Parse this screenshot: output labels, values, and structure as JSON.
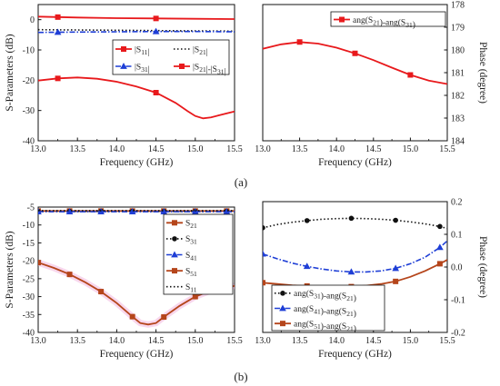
{
  "chart_data": [
    {
      "id": "a-left",
      "type": "line",
      "xlabel": "Frequency (GHz)",
      "ylabel": "S-Parameters (dB)",
      "xlim": [
        13.0,
        15.5
      ],
      "ylim": [
        -40,
        5
      ],
      "xticks": [
        "13.0",
        "13.5",
        "14.0",
        "14.5",
        "15.0",
        "15.5"
      ],
      "yticks": [
        "0",
        "-10",
        "-20",
        "-30",
        "-40"
      ],
      "legend_position": "center-right",
      "series": [
        {
          "name": "|S11|",
          "color": "#e8191c",
          "dash": "solid",
          "marker": "square",
          "x": [
            13.0,
            13.25,
            13.5,
            13.75,
            14.0,
            14.25,
            14.5,
            14.75,
            14.9,
            15.0,
            15.1,
            15.2,
            15.3,
            15.5
          ],
          "y": [
            -20.1,
            -19.4,
            -19.1,
            -19.5,
            -20.5,
            -22.1,
            -24.1,
            -27.5,
            -30.2,
            -31.8,
            -32.6,
            -32.3,
            -31.6,
            -30.3
          ],
          "markers_x": [
            13.25,
            14.5
          ]
        },
        {
          "name": "|S21|",
          "color": "#111111",
          "dash": "dot",
          "marker": "none",
          "x": [
            13.0,
            13.5,
            14.0,
            14.5,
            15.0,
            15.5
          ],
          "y": [
            -3.3,
            -3.4,
            -3.5,
            -3.6,
            -3.7,
            -3.8
          ]
        },
        {
          "name": "|S31|",
          "color": "#1f3fd6",
          "dash": "dashdot",
          "marker": "triangle",
          "x": [
            13.0,
            13.5,
            14.0,
            14.5,
            15.0,
            15.5
          ],
          "y": [
            -4.2,
            -4.1,
            -4.0,
            -3.9,
            -3.9,
            -4.0
          ],
          "markers_x": [
            13.25,
            14.5
          ]
        },
        {
          "name": "|S21|-|S31|",
          "color": "#e8191c",
          "dash": "solid",
          "marker": "square",
          "x": [
            13.0,
            13.5,
            14.0,
            14.5,
            15.0,
            15.5
          ],
          "y": [
            1.0,
            0.7,
            0.5,
            0.4,
            0.3,
            0.2
          ],
          "markers_x": [
            13.25,
            14.5
          ]
        }
      ]
    },
    {
      "id": "a-right",
      "type": "line",
      "xlabel": "Frequency (GHz)",
      "ylabel": "Phase (degree)",
      "xlim": [
        13.0,
        15.5
      ],
      "ylim": [
        184,
        178
      ],
      "xticks": [
        "13.0",
        "13.5",
        "14.0",
        "14.5",
        "15.0",
        "15.5"
      ],
      "yticks": [
        "178",
        "179",
        "180",
        "181",
        "182",
        "183",
        "184"
      ],
      "legend_position": "top-right",
      "series": [
        {
          "name": "ang(S21)-ang(S31)",
          "color": "#e8191c",
          "dash": "solid",
          "marker": "square",
          "x": [
            13.0,
            13.25,
            13.5,
            13.75,
            14.0,
            14.25,
            14.5,
            14.75,
            15.0,
            15.25,
            15.5
          ],
          "y": [
            179.95,
            179.75,
            179.65,
            179.72,
            179.9,
            180.15,
            180.45,
            180.78,
            181.1,
            181.35,
            181.5
          ],
          "markers_x": [
            13.5,
            14.25,
            15.0
          ]
        }
      ]
    },
    {
      "id": "b-left",
      "type": "line",
      "xlabel": "Frequency (GHz)",
      "ylabel": "S-Parameters (dB)",
      "xlim": [
        13.0,
        15.5
      ],
      "ylim": [
        -40,
        -5
      ],
      "xticks": [
        "13.0",
        "13.5",
        "14.0",
        "14.5",
        "15.0",
        "15.5"
      ],
      "yticks": [
        "-5",
        "-10",
        "-15",
        "-20",
        "-25",
        "-30",
        "-35",
        "-40"
      ],
      "legend_position": "top-right",
      "series": [
        {
          "name": "S21",
          "color": "#b5451b",
          "dash": "solid",
          "marker": "square",
          "x": [
            13.0,
            13.5,
            14.0,
            14.5,
            15.0,
            15.5
          ],
          "y": [
            -6.1,
            -6.1,
            -6.1,
            -6.1,
            -6.1,
            -6.1
          ],
          "markers_x": [
            13.0,
            13.4,
            13.8,
            14.2,
            14.6,
            15.0,
            15.4
          ]
        },
        {
          "name": "S31",
          "color": "#111111",
          "dash": "dot",
          "marker": "circle",
          "x": [
            13.0,
            13.5,
            14.0,
            14.5,
            15.0,
            15.5
          ],
          "y": [
            -6.2,
            -6.2,
            -6.2,
            -6.2,
            -6.2,
            -6.2
          ],
          "markers_x": [
            13.0,
            13.4,
            13.8,
            14.2,
            14.6,
            15.0,
            15.4
          ]
        },
        {
          "name": "S41",
          "color": "#1f3fd6",
          "dash": "dashdot",
          "marker": "triangle",
          "x": [
            13.0,
            13.5,
            14.0,
            14.5,
            15.0,
            15.5
          ],
          "y": [
            -6.3,
            -6.3,
            -6.3,
            -6.3,
            -6.3,
            -6.3
          ],
          "markers_x": [
            13.0,
            13.4,
            13.8,
            14.2,
            14.6,
            15.0,
            15.4
          ]
        },
        {
          "name": "S51",
          "color": "#b5451b",
          "dash": "solid",
          "marker": "square",
          "x": [
            13.0,
            13.2,
            13.4,
            13.6,
            13.8,
            14.0,
            14.2,
            14.3,
            14.4,
            14.5,
            14.6,
            14.8,
            15.0,
            15.2,
            15.4,
            15.5
          ],
          "y": [
            -20.5,
            -22.0,
            -23.8,
            -26.0,
            -28.6,
            -31.8,
            -35.6,
            -37.4,
            -37.8,
            -37.4,
            -35.7,
            -32.6,
            -30.0,
            -28.3,
            -27.6,
            -27.0
          ],
          "markers_x": [
            13.0,
            13.4,
            13.8,
            14.2,
            14.6,
            15.0,
            15.4
          ]
        },
        {
          "name": "S11",
          "color": "#111111",
          "dash": "dot",
          "marker": "none",
          "x": [
            13.0,
            13.5,
            14.0,
            14.5,
            15.0,
            15.5
          ],
          "y": [
            -6.0,
            -6.0,
            -6.0,
            -6.0,
            -6.0,
            -6.0
          ]
        }
      ]
    },
    {
      "id": "b-right",
      "type": "line",
      "xlabel": "Frequency (GHz)",
      "ylabel": "Phase (degree)",
      "xlim": [
        13.0,
        15.5
      ],
      "ylim": [
        -0.2,
        0.2
      ],
      "xticks": [
        "13.0",
        "13.5",
        "14.0",
        "14.5",
        "15.0",
        "15.5"
      ],
      "yticks": [
        "0.2",
        "0.1",
        "0.0",
        "-0.1",
        "-0.2"
      ],
      "legend_position": "bottom-left",
      "series": [
        {
          "name": "ang(S31)-ang(S21)",
          "color": "#111111",
          "dash": "dot",
          "marker": "circle",
          "x": [
            13.0,
            13.2,
            13.4,
            13.6,
            13.8,
            14.0,
            14.2,
            14.4,
            14.6,
            14.8,
            15.0,
            15.2,
            15.4,
            15.5
          ],
          "y": [
            0.12,
            0.13,
            0.137,
            0.142,
            0.146,
            0.148,
            0.149,
            0.148,
            0.146,
            0.143,
            0.138,
            0.132,
            0.124,
            0.118
          ],
          "markers_x": [
            13.0,
            13.6,
            14.2,
            14.8,
            15.4
          ]
        },
        {
          "name": "ang(S41)-ang(S21)",
          "color": "#1f3fd6",
          "dash": "dashdot",
          "marker": "triangle",
          "x": [
            13.0,
            13.2,
            13.4,
            13.6,
            13.8,
            14.0,
            14.2,
            14.4,
            14.6,
            14.8,
            15.0,
            15.2,
            15.4,
            15.5
          ],
          "y": [
            0.04,
            0.025,
            0.012,
            0.002,
            -0.006,
            -0.012,
            -0.015,
            -0.015,
            -0.012,
            -0.004,
            0.01,
            0.03,
            0.06,
            0.08
          ],
          "markers_x": [
            13.0,
            13.6,
            14.2,
            14.8,
            15.4
          ]
        },
        {
          "name": "ang(S51)-ang(S21)",
          "color": "#b5451b",
          "dash": "solid",
          "marker": "square",
          "x": [
            13.0,
            13.2,
            13.4,
            13.6,
            13.8,
            14.0,
            14.2,
            14.4,
            14.6,
            14.8,
            15.0,
            15.2,
            15.4,
            15.5
          ],
          "y": [
            -0.048,
            -0.052,
            -0.056,
            -0.058,
            -0.06,
            -0.061,
            -0.06,
            -0.057,
            -0.052,
            -0.044,
            -0.03,
            -0.012,
            0.01,
            0.022
          ],
          "markers_x": [
            13.0,
            13.6,
            14.2,
            14.8,
            15.4
          ]
        }
      ]
    }
  ],
  "captions": {
    "top": "(a)",
    "bottom": "(b)"
  }
}
